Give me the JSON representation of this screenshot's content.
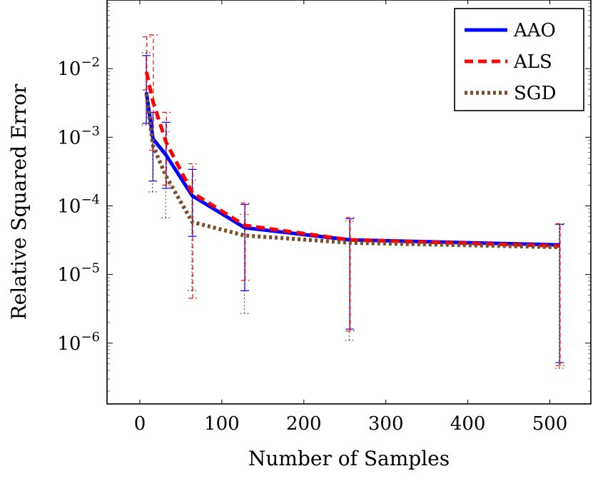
{
  "chart_data": {
    "type": "line",
    "xlabel": "Number of Samples",
    "ylabel": "Relative Squared Error",
    "yscale": "log",
    "xlim": [
      -40,
      550
    ],
    "ylim": [
      1.3e-07,
      0.1
    ],
    "xticks": [
      0,
      100,
      200,
      300,
      400,
      500
    ],
    "yticks": [
      {
        "value": 1e-06,
        "base": "10",
        "exp": "−6"
      },
      {
        "value": 1e-05,
        "base": "10",
        "exp": "−5"
      },
      {
        "value": 0.0001,
        "base": "10",
        "exp": "−4"
      },
      {
        "value": 0.001,
        "base": "10",
        "exp": "−3"
      },
      {
        "value": 0.01,
        "base": "10",
        "exp": "−2"
      }
    ],
    "legend_position": "top-right",
    "grid": false,
    "error_bars": true,
    "series": [
      {
        "name": "AAO",
        "color": "#0000ff",
        "style": "solid",
        "x": [
          8,
          16,
          32,
          64,
          128,
          256,
          512
        ],
        "y": [
          0.0045,
          0.00095,
          0.00055,
          0.00014,
          4.8e-05,
          3.2e-05,
          2.7e-05
        ],
        "err_low": [
          0.0016,
          0.00023,
          0.00018,
          3.6e-05,
          5.8e-06,
          1.6e-06,
          5.2e-07
        ],
        "err_high": [
          0.0155,
          0.0023,
          0.00165,
          0.00034,
          0.000105,
          6.5e-05,
          5.4e-05
        ]
      },
      {
        "name": "ALS",
        "color": "#ff0000",
        "style": "dashed",
        "x": [
          8,
          16,
          32,
          64,
          128,
          256,
          512
        ],
        "y": [
          0.009,
          0.0033,
          0.00085,
          0.000155,
          5.2e-05,
          3.2e-05,
          2.6e-05
        ],
        "err_low": [
          0.0049,
          0.00065,
          0.0002,
          4.5e-06,
          8.2e-06,
          1.5e-06,
          4.7e-07
        ],
        "err_high": [
          0.029,
          0.031,
          0.0023,
          0.00041,
          0.00011,
          6.8e-05,
          5.5e-05
        ]
      },
      {
        "name": "SGD",
        "color": "#7a4e2d",
        "style": "dotted",
        "x": [
          8,
          16,
          32,
          64,
          128,
          256,
          512
        ],
        "y": [
          0.0043,
          0.00075,
          0.00027,
          5.8e-05,
          3.7e-05,
          2.9e-05,
          2.5e-05
        ],
        "err_low": [
          0.0015,
          0.00016,
          6.7e-05,
          5.8e-06,
          2.7e-06,
          1.1e-06,
          4.3e-07
        ],
        "err_high": [
          0.017,
          0.0019,
          0.0012,
          0.00024,
          7.5e-05,
          6e-05,
          5.3e-05
        ]
      }
    ]
  }
}
